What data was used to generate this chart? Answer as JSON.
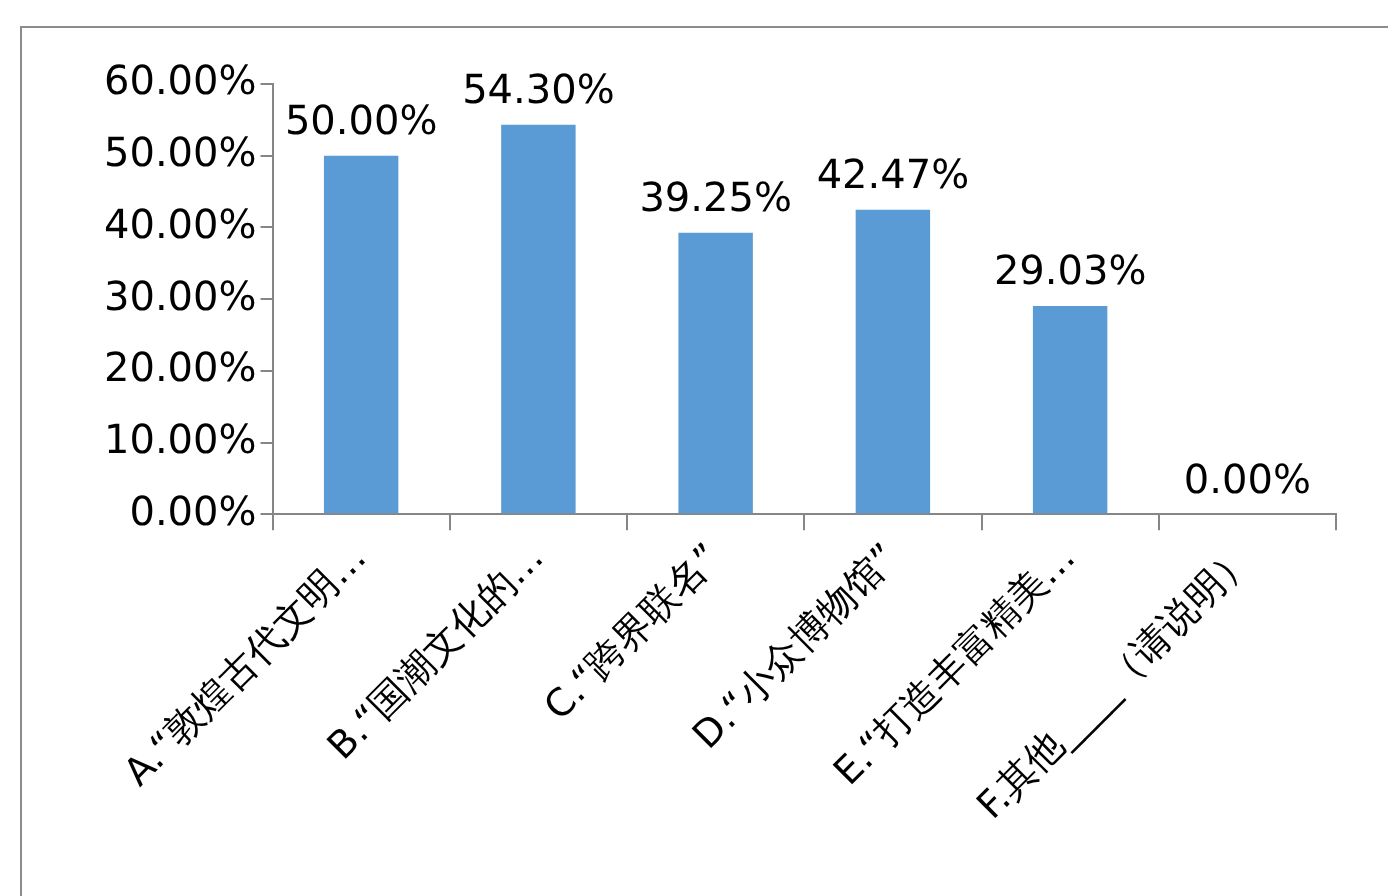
{
  "chart_data": {
    "type": "bar",
    "categories": [
      "A.“敦煌古代文明…",
      "B.“国潮文化的…",
      "C.“跨界联名”",
      "D.“小众博物馆”",
      "E.“打造丰富精美…",
      "F.其他____（请说明）"
    ],
    "values": [
      50,
      54.3,
      39.25,
      42.47,
      29.03,
      0
    ],
    "value_labels": [
      "50.00%",
      "54.30%",
      "39.25%",
      "42.47%",
      "29.03%",
      "0.00%"
    ],
    "color": "#5b9bd5",
    "ylim": [
      0,
      60
    ],
    "yticks": [
      {
        "value": 0,
        "label": "0.00%"
      },
      {
        "value": 10,
        "label": "10.00%"
      },
      {
        "value": 20,
        "label": "20.00%"
      },
      {
        "value": 30,
        "label": "30.00%"
      },
      {
        "value": 40,
        "label": "40.00%"
      },
      {
        "value": 50,
        "label": "50.00%"
      },
      {
        "value": 60,
        "label": "60.00%"
      }
    ],
    "grid": false,
    "legend": false
  }
}
